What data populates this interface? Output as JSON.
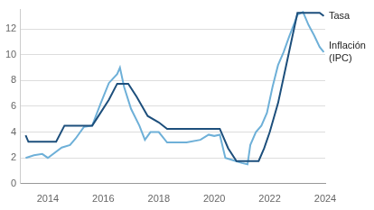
{
  "chart_data": {
    "type": "line",
    "xlim": [
      2013,
      2024
    ],
    "xticks": [
      2014,
      2016,
      2018,
      2020,
      2022,
      2024
    ],
    "ylim": [
      0,
      13.5
    ],
    "yticks": [
      0,
      2,
      4,
      6,
      8,
      10,
      12
    ],
    "grid": true,
    "series": [
      {
        "name": "Tasa",
        "color": "#1d4f7c",
        "x": [
          2013.2,
          2013.3,
          2014.3,
          2014.6,
          2015.6,
          2015.9,
          2016.2,
          2016.5,
          2016.9,
          2017.2,
          2017.6,
          2018.0,
          2018.3,
          2020.2,
          2020.5,
          2020.8,
          2021.6,
          2021.8,
          2022.0,
          2022.3,
          2022.6,
          2022.8,
          2023.0,
          2023.8,
          2023.95
        ],
        "values": [
          3.75,
          3.25,
          3.25,
          4.5,
          4.5,
          5.5,
          6.5,
          7.75,
          7.75,
          6.75,
          5.25,
          4.75,
          4.25,
          4.25,
          2.75,
          1.75,
          1.75,
          2.75,
          4.0,
          6.25,
          9.25,
          11.25,
          13.25,
          13.25,
          13.0
        ]
      },
      {
        "name": "Inflación (IPC)",
        "color": "#6eb0d8",
        "x": [
          2013.2,
          2013.5,
          2013.8,
          2014.0,
          2014.5,
          2014.8,
          2015.0,
          2015.3,
          2015.6,
          2015.9,
          2016.2,
          2016.5,
          2016.6,
          2016.75,
          2017.0,
          2017.3,
          2017.5,
          2017.7,
          2018.0,
          2018.3,
          2018.7,
          2019.0,
          2019.5,
          2019.8,
          2020.0,
          2020.2,
          2020.4,
          2020.7,
          2021.0,
          2021.2,
          2021.3,
          2021.5,
          2021.7,
          2021.9,
          2022.1,
          2022.3,
          2022.5,
          2022.7,
          2022.9,
          2023.0,
          2023.2,
          2023.4,
          2023.6,
          2023.8,
          2023.95
        ],
        "values": [
          2.0,
          2.2,
          2.3,
          2.0,
          2.8,
          3.0,
          3.5,
          4.4,
          4.5,
          6.2,
          7.8,
          8.5,
          9.0,
          7.5,
          5.8,
          4.5,
          3.4,
          4.0,
          4.0,
          3.2,
          3.2,
          3.2,
          3.4,
          3.8,
          3.7,
          3.8,
          2.0,
          1.8,
          1.6,
          1.5,
          3.0,
          4.0,
          4.5,
          5.5,
          7.5,
          9.2,
          10.2,
          11.4,
          12.5,
          13.1,
          13.3,
          12.3,
          11.5,
          10.6,
          10.2
        ]
      }
    ]
  }
}
